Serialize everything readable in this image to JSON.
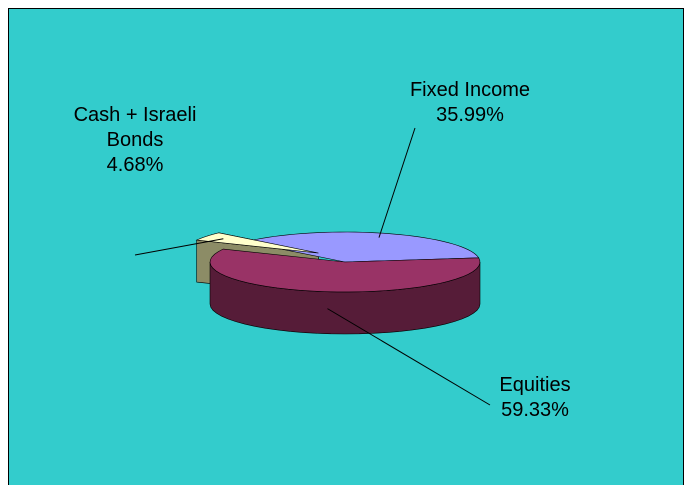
{
  "chart_data": {
    "type": "pie",
    "categories": [
      "Fixed Income",
      "Cash + Israeli Bonds",
      "Equities"
    ],
    "values": [
      35.99,
      4.68,
      59.33
    ],
    "value_labels": [
      "35.99%",
      "4.68%",
      "59.33%"
    ],
    "colors": [
      "#9999ff",
      "#ffffcc",
      "#993366"
    ],
    "side_colors": [
      "#4d4d99",
      "#8c8c66",
      "#561c38"
    ]
  }
}
